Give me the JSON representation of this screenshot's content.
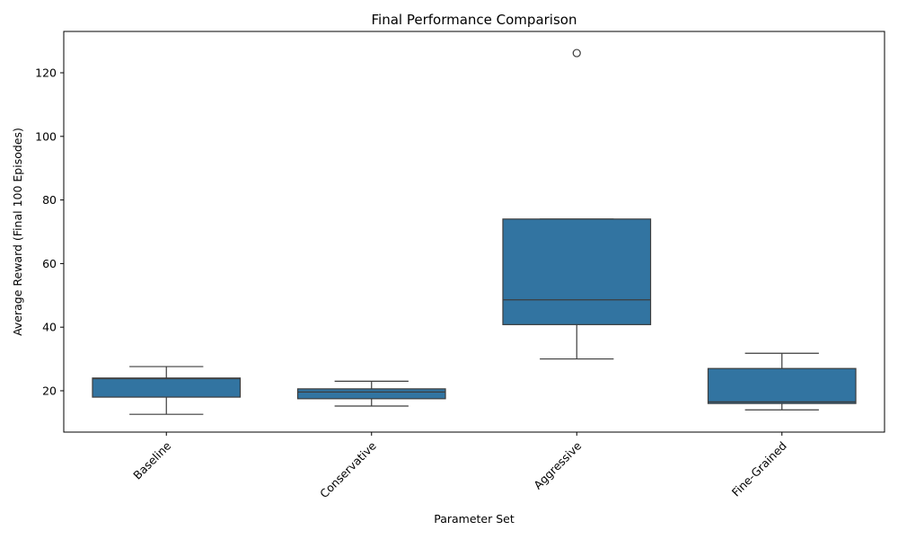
{
  "chart_data": {
    "type": "box",
    "title": "Final Performance Comparison",
    "xlabel": "Parameter Set",
    "ylabel": "Average Reward (Final 100 Episodes)",
    "ylim": [
      7,
      133
    ],
    "yticks": [
      20,
      40,
      60,
      80,
      100,
      120
    ],
    "grid": false,
    "box_color": "#3274a1",
    "line_color": "#3d3d3d",
    "categories": [
      "Baseline",
      "Conservative",
      "Aggressive",
      "Fine-Grained"
    ],
    "boxes": [
      {
        "category": "Baseline",
        "whisker_low": 12.6,
        "q1": 18.0,
        "median": 23.8,
        "q3": 24.0,
        "whisker_high": 27.6,
        "outliers": []
      },
      {
        "category": "Conservative",
        "whisker_low": 15.2,
        "q1": 17.5,
        "median": 19.6,
        "q3": 20.6,
        "whisker_high": 23.0,
        "outliers": []
      },
      {
        "category": "Aggressive",
        "whisker_low": 30.0,
        "q1": 40.8,
        "median": 48.6,
        "q3": 74.0,
        "whisker_high": 74.0,
        "outliers": [
          126.2
        ]
      },
      {
        "category": "Fine-Grained",
        "whisker_low": 14.0,
        "q1": 16.0,
        "median": 16.5,
        "q3": 27.0,
        "whisker_high": 31.8,
        "outliers": []
      }
    ]
  }
}
